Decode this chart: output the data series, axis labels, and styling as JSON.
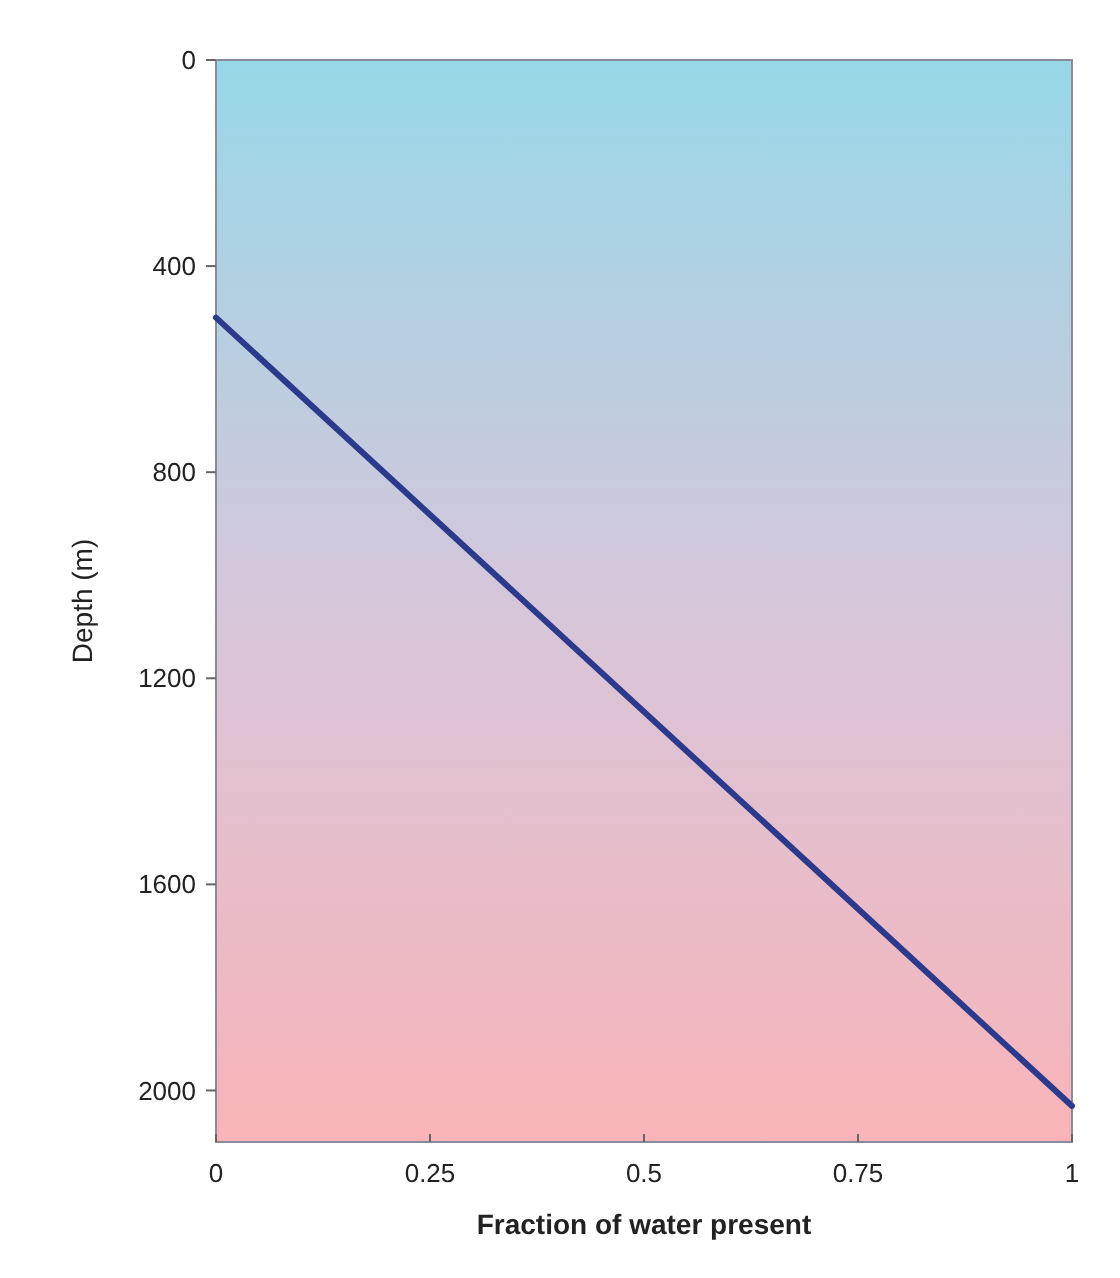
{
  "chart_data": {
    "type": "line",
    "xlabel": "Fraction of water present",
    "ylabel": "Depth (m)",
    "x": [
      0,
      1
    ],
    "series": [
      {
        "color": "#2b3a8c",
        "values": [
          500,
          2030
        ]
      }
    ],
    "xlim": [
      0,
      1
    ],
    "xticks": [
      0,
      0.25,
      0.5,
      0.75,
      1
    ],
    "ylim": [
      2100,
      0
    ],
    "yticks": [
      0,
      400,
      800,
      1200,
      1600,
      2000
    ],
    "grid": false,
    "marker": "none",
    "line_style": "solid"
  }
}
